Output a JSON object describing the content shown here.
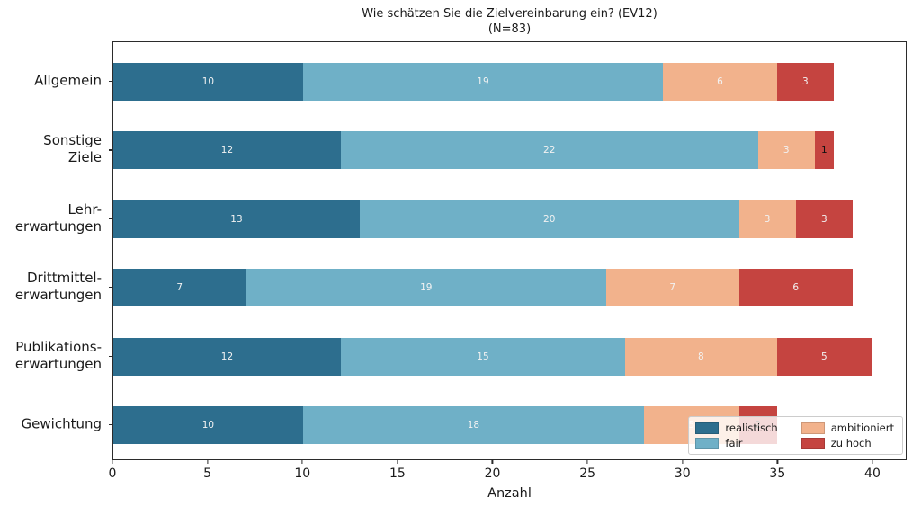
{
  "chart_data": {
    "type": "bar",
    "orientation": "horizontal",
    "stacked": true,
    "title": "Wie schätzen Sie die Zielvereinbarung ein? (EV12)",
    "subtitle": "(N=83)",
    "xlabel": "Anzahl",
    "xticks": [
      0,
      5,
      10,
      15,
      20,
      25,
      30,
      35,
      40
    ],
    "xlim": [
      0,
      41.8
    ],
    "grid": false,
    "categories": [
      {
        "lines": [
          "Allgemein"
        ]
      },
      {
        "lines": [
          "Sonstige",
          "Ziele"
        ]
      },
      {
        "lines": [
          "Lehr-",
          "erwartungen"
        ]
      },
      {
        "lines": [
          "Drittmittel-",
          "erwartungen"
        ]
      },
      {
        "lines": [
          "Publikations-",
          "erwartungen"
        ]
      },
      {
        "lines": [
          "Gewichtung"
        ]
      }
    ],
    "series": [
      {
        "name": "realistisch",
        "color": "#2d6e8e",
        "values": [
          10,
          12,
          13,
          7,
          12,
          10
        ]
      },
      {
        "name": "fair",
        "color": "#6fb0c7",
        "values": [
          19,
          22,
          20,
          19,
          15,
          18
        ]
      },
      {
        "name": "ambitioniert",
        "color": "#f2b28c",
        "values": [
          6,
          3,
          3,
          7,
          8,
          5
        ]
      },
      {
        "name": "zu hoch",
        "color": "#c54440",
        "values": [
          3,
          1,
          3,
          6,
          5,
          2
        ]
      }
    ],
    "totals": [
      38,
      38,
      39,
      39,
      40,
      35
    ],
    "value_label_color": "#f2f2f2",
    "dark_value_label_color": "#111111",
    "dark_value_labels": [
      [
        1,
        3
      ],
      [
        5,
        3
      ]
    ],
    "legend": {
      "entries": [
        "realistisch",
        "fair",
        "ambitioniert",
        "zu hoch"
      ],
      "position": "lower right"
    }
  }
}
